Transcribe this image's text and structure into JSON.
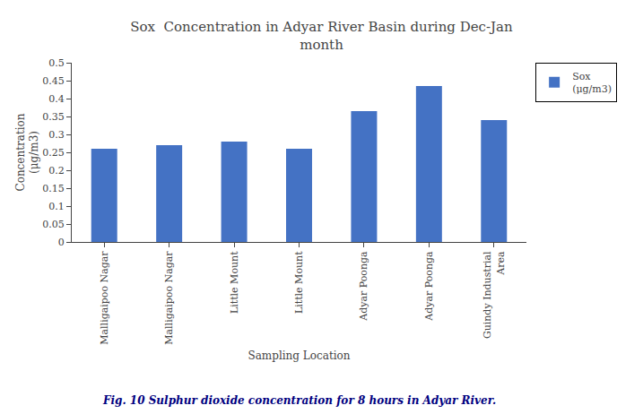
{
  "chart_data": {
    "type": "bar",
    "title": "Sox  Concentration in Adyar River Basin during Dec-Jan\nmonth",
    "xlabel": "Sampling Location",
    "ylabel": "Concentration\n(μg/m3)",
    "categories": [
      "Malligaipoo Nagar",
      "Malligaipoo Nagar",
      "Little Mount",
      "Little Mount",
      "Adyar Poonga",
      "Adyar Poonga",
      "Guindy Industrial\nArea"
    ],
    "series": [
      {
        "name": "Sox\n(μg/m3)",
        "color": "#4472C4",
        "values": [
          0.26,
          0.27,
          0.28,
          0.26,
          0.365,
          0.435,
          0.34
        ]
      }
    ],
    "ylim": [
      0,
      0.5
    ],
    "yticks": [
      0,
      0.05,
      0.1,
      0.15,
      0.2,
      0.25,
      0.3,
      0.35,
      0.4,
      0.45,
      0.5
    ],
    "grid": false,
    "legend": "upper right",
    "annotations": [
      "Fig. 10 Sulphur dioxide concentration for 8 hours in Adyar River."
    ]
  }
}
